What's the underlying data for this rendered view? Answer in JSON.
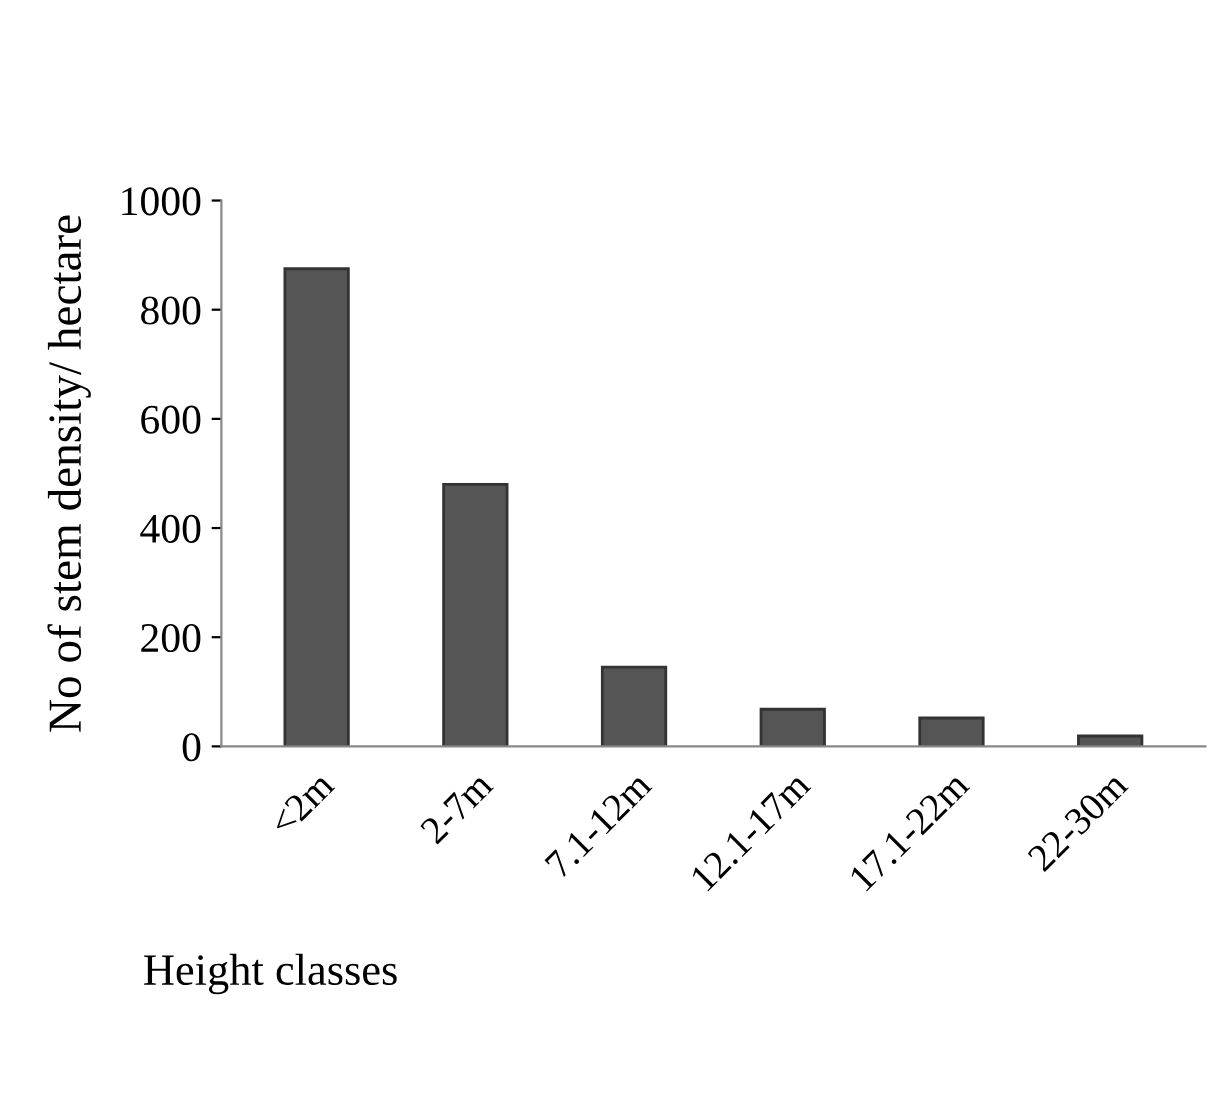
{
  "chart_data": {
    "type": "bar",
    "xlabel": "Height classes",
    "ylabel": "No of stem density/ hectare",
    "categories": [
      "<2m",
      "2-7m",
      "7.1-12m",
      "12.1-17m",
      "17.1-22m",
      "22-30m"
    ],
    "values": [
      875,
      480,
      145,
      68,
      52,
      19
    ],
    "color": "#555555",
    "ylim": [
      0,
      1000
    ],
    "yticks": [
      0,
      200,
      400,
      600,
      800,
      1000
    ],
    "grid": false,
    "legend": false
  }
}
